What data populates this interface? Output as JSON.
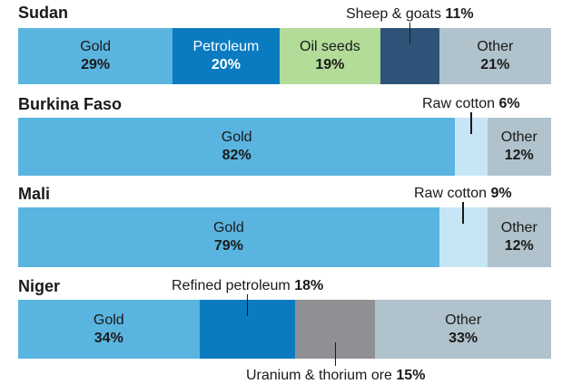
{
  "chart_data": {
    "type": "bar",
    "stacked": "100%",
    "panels": [
      {
        "country": "Sudan",
        "segments": [
          {
            "label": "Gold",
            "value": 29,
            "color": "#5ab4e0",
            "text": "dark"
          },
          {
            "label": "Petroleum",
            "value": 20,
            "color": "#0a7bc0",
            "text": "light"
          },
          {
            "label": "Oil seeds",
            "value": 19,
            "color": "#b2dc98",
            "text": "dark"
          },
          {
            "label": "Sheep & goats",
            "value": 11,
            "color": "#2d5478",
            "text": "none",
            "callout": "above"
          },
          {
            "label": "Other",
            "value": 21,
            "color": "#b0c2cc",
            "text": "dark"
          }
        ]
      },
      {
        "country": "Burkina Faso",
        "segments": [
          {
            "label": "Gold",
            "value": 82,
            "color": "#5ab4e0",
            "text": "dark"
          },
          {
            "label": "Raw cotton",
            "value": 6,
            "color": "#c6e6f5",
            "text": "none",
            "callout": "above"
          },
          {
            "label": "Other",
            "value": 12,
            "color": "#b0c2cc",
            "text": "dark"
          }
        ]
      },
      {
        "country": "Mali",
        "segments": [
          {
            "label": "Gold",
            "value": 79,
            "color": "#5ab4e0",
            "text": "dark"
          },
          {
            "label": "Raw cotton",
            "value": 9,
            "color": "#c6e6f5",
            "text": "none",
            "callout": "above"
          },
          {
            "label": "Other",
            "value": 12,
            "color": "#b0c2cc",
            "text": "dark"
          }
        ]
      },
      {
        "country": "Niger",
        "segments": [
          {
            "label": "Gold",
            "value": 34,
            "color": "#5ab4e0",
            "text": "dark"
          },
          {
            "label": "Refined petroleum",
            "value": 18,
            "color": "#0a7bc0",
            "text": "none",
            "callout": "above"
          },
          {
            "label": "Uranium & thorium ore",
            "value": 15,
            "color": "#8e9094",
            "text": "none",
            "callout": "below"
          },
          {
            "label": "Other",
            "value": 33,
            "color": "#b0c2cc",
            "text": "dark"
          }
        ]
      }
    ]
  }
}
